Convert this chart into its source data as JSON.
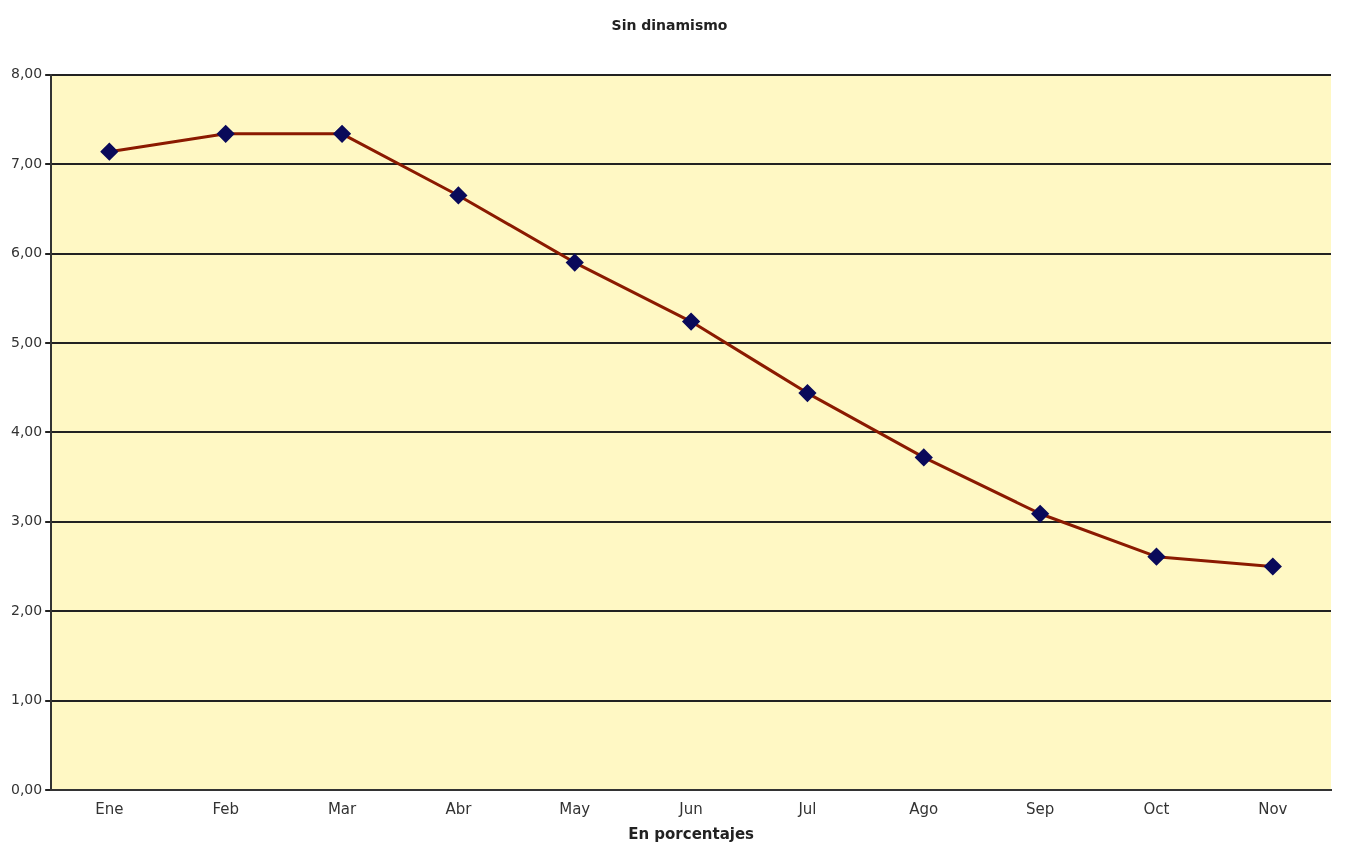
{
  "chart_data": {
    "type": "line",
    "title": "Sin dinamismo",
    "xlabel": "En porcentajes",
    "categories": [
      "Ene",
      "Feb",
      "Mar",
      "Abr",
      "May",
      "Jun",
      "Jul",
      "Ago",
      "Sep",
      "Oct",
      "Nov"
    ],
    "series": [
      {
        "color": "#8b1a00",
        "values": [
          7.14,
          7.34,
          7.34,
          6.65,
          5.9,
          5.24,
          4.44,
          3.72,
          3.09,
          2.61,
          2.5
        ]
      }
    ],
    "ylim": [
      0,
      8
    ],
    "yticks": [
      {
        "value": 0,
        "label": "0,00"
      },
      {
        "value": 1,
        "label": "1,00"
      },
      {
        "value": 2,
        "label": "2,00"
      },
      {
        "value": 3,
        "label": "3,00"
      },
      {
        "value": 4,
        "label": "4,00"
      },
      {
        "value": 5,
        "label": "5,00"
      },
      {
        "value": 6,
        "label": "6,00"
      },
      {
        "value": 7,
        "label": "7,00"
      },
      {
        "value": 8,
        "label": "8,00"
      }
    ],
    "grid": "y",
    "legend": false,
    "marker": "diamond",
    "line_style": "solid"
  }
}
